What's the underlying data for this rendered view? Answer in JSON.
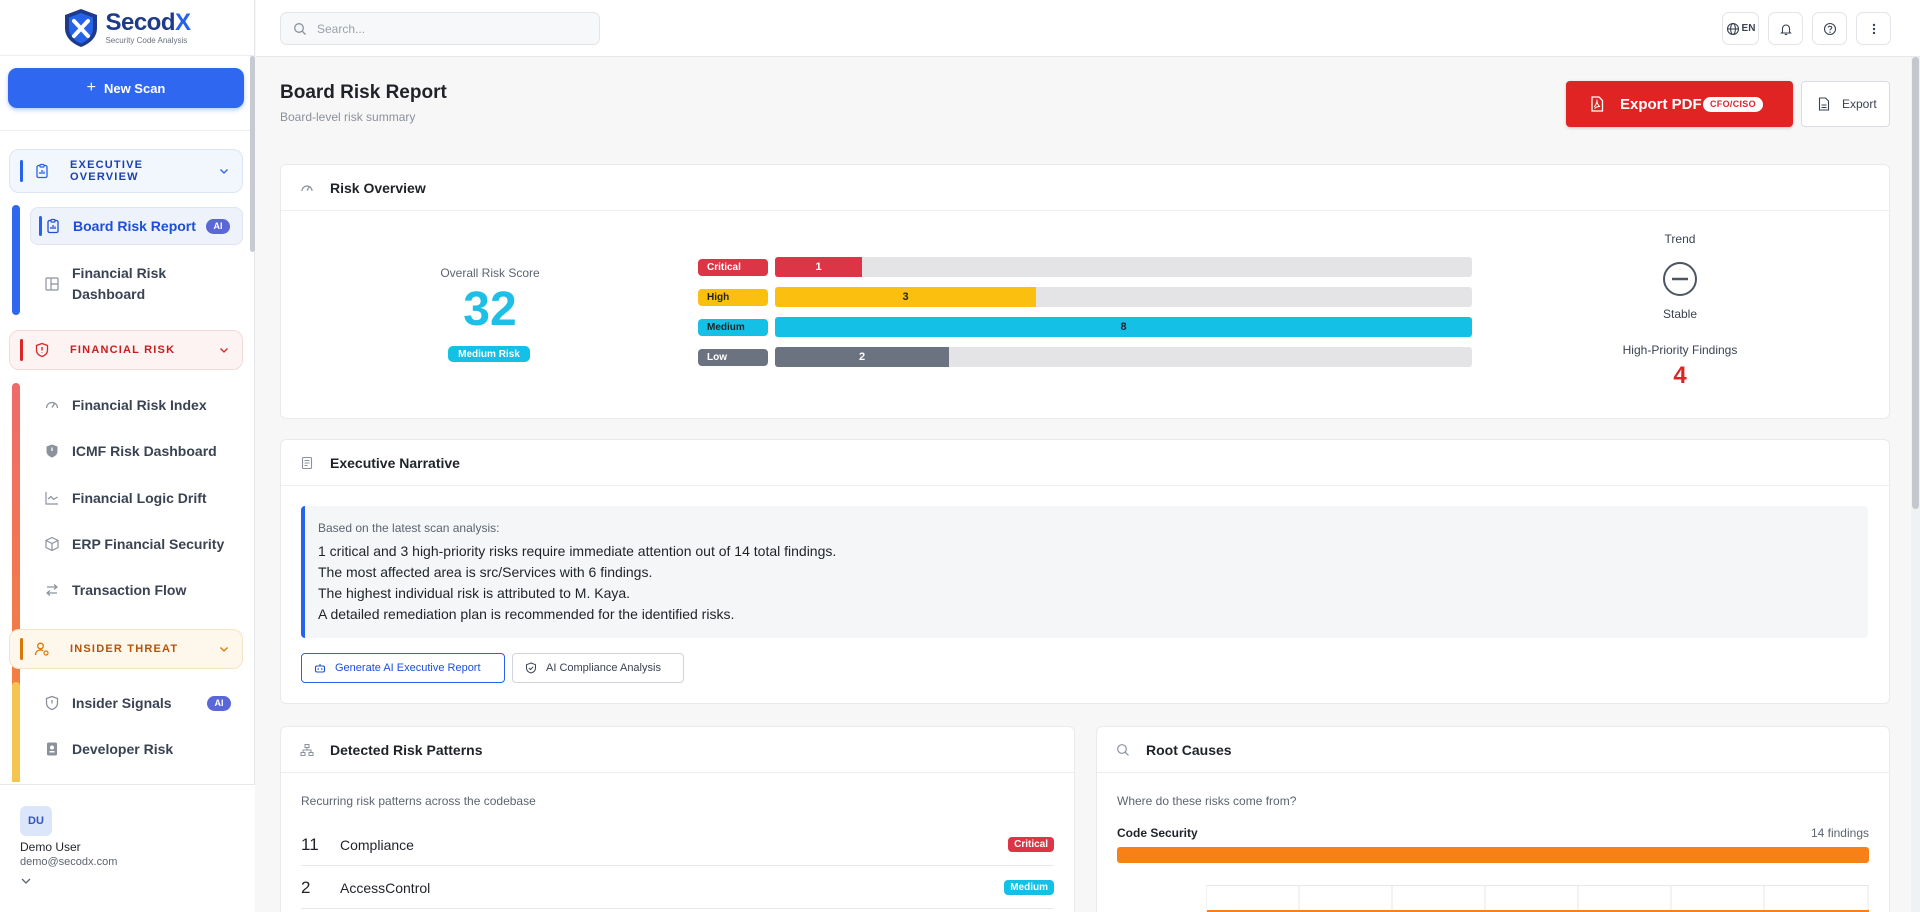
{
  "app": {
    "name_main": "Secod",
    "name_accent": "X",
    "tagline": "Security Code Analysis",
    "brand_color": "#2f67f0"
  },
  "sidebar": {
    "new_scan_label": "New Scan",
    "groups": [
      {
        "label": "EXECUTIVE OVERVIEW",
        "icon": "clipboard-chart-icon",
        "color": "#2563eb",
        "items": [
          {
            "label": "Board Risk Report",
            "icon": "clipboard-chart-icon",
            "badge": "AI",
            "active": true
          },
          {
            "label": "Financial Risk Dashboard",
            "icon": "layout-icon"
          }
        ]
      },
      {
        "label": "FINANCIAL RISK",
        "icon": "shield-alert-icon",
        "color": "#dc2626",
        "items": [
          {
            "label": "Financial Risk Index",
            "icon": "gauge-icon"
          },
          {
            "label": "ICMF Risk Dashboard",
            "icon": "shield-icon"
          },
          {
            "label": "Financial Logic Drift",
            "icon": "line-chart-icon"
          },
          {
            "label": "ERP Financial Security",
            "icon": "box-icon"
          },
          {
            "label": "Transaction Flow",
            "icon": "arrows-swap-icon"
          }
        ]
      },
      {
        "label": "INSIDER THREAT",
        "icon": "user-gear-icon",
        "color": "#d97706",
        "items": [
          {
            "label": "Insider Signals",
            "icon": "shield-icon",
            "badge": "AI"
          },
          {
            "label": "Developer Risk",
            "icon": "id-badge-icon"
          }
        ]
      }
    ],
    "user": {
      "initials": "DU",
      "name": "Demo User",
      "email": "demo@secodx.com"
    }
  },
  "topbar": {
    "search_placeholder": "Search...",
    "language": "EN"
  },
  "page": {
    "title": "Board Risk Report",
    "subtitle": "Board-level risk summary",
    "export_pdf_label": "Export PDF",
    "export_pdf_tag": "CFO/CISO",
    "export_label": "Export"
  },
  "risk_overview": {
    "title": "Risk Overview",
    "score_label": "Overall Risk Score",
    "score": "32",
    "score_level": "Medium Risk",
    "severity_max": 8,
    "severities": [
      {
        "label": "Critical",
        "count": 1,
        "color": "#dc3545",
        "text_color": "#ffffff"
      },
      {
        "label": "High",
        "count": 3,
        "color": "#fbbf0f",
        "text_color": "#1f2328"
      },
      {
        "label": "Medium",
        "count": 8,
        "color": "#14c0e6",
        "text_color": "#1f2328"
      },
      {
        "label": "Low",
        "count": 2,
        "color": "#6b7280",
        "text_color": "#ffffff"
      }
    ],
    "trend_label": "Trend",
    "trend_value": "Stable",
    "high_priority_label": "High-Priority Findings",
    "high_priority_value": "4"
  },
  "narrative": {
    "title": "Executive Narrative",
    "intro": "Based on the latest scan analysis:",
    "lines": [
      "1 critical and 3 high-priority risks require immediate attention out of 14 total findings.",
      "The most affected area is src/Services with 6 findings.",
      "The highest individual risk is attributed to M. Kaya.",
      "A detailed remediation plan is recommended for the identified risks."
    ],
    "btn_ai_report": "Generate AI Executive Report",
    "btn_compliance": "AI Compliance Analysis"
  },
  "patterns": {
    "title": "Detected Risk Patterns",
    "intro": "Recurring risk patterns across the codebase",
    "rows": [
      {
        "count": "11",
        "name": "Compliance",
        "badge": "Critical",
        "badge_color": "#dc3545"
      },
      {
        "count": "2",
        "name": "AccessControl",
        "badge": "Medium",
        "badge_color": "#14c0e6"
      }
    ]
  },
  "root_causes": {
    "title": "Root Causes",
    "intro": "Where do these risks come from?",
    "category": "Code Security",
    "count_label": "14 findings",
    "bar_color": "#f97f17"
  }
}
